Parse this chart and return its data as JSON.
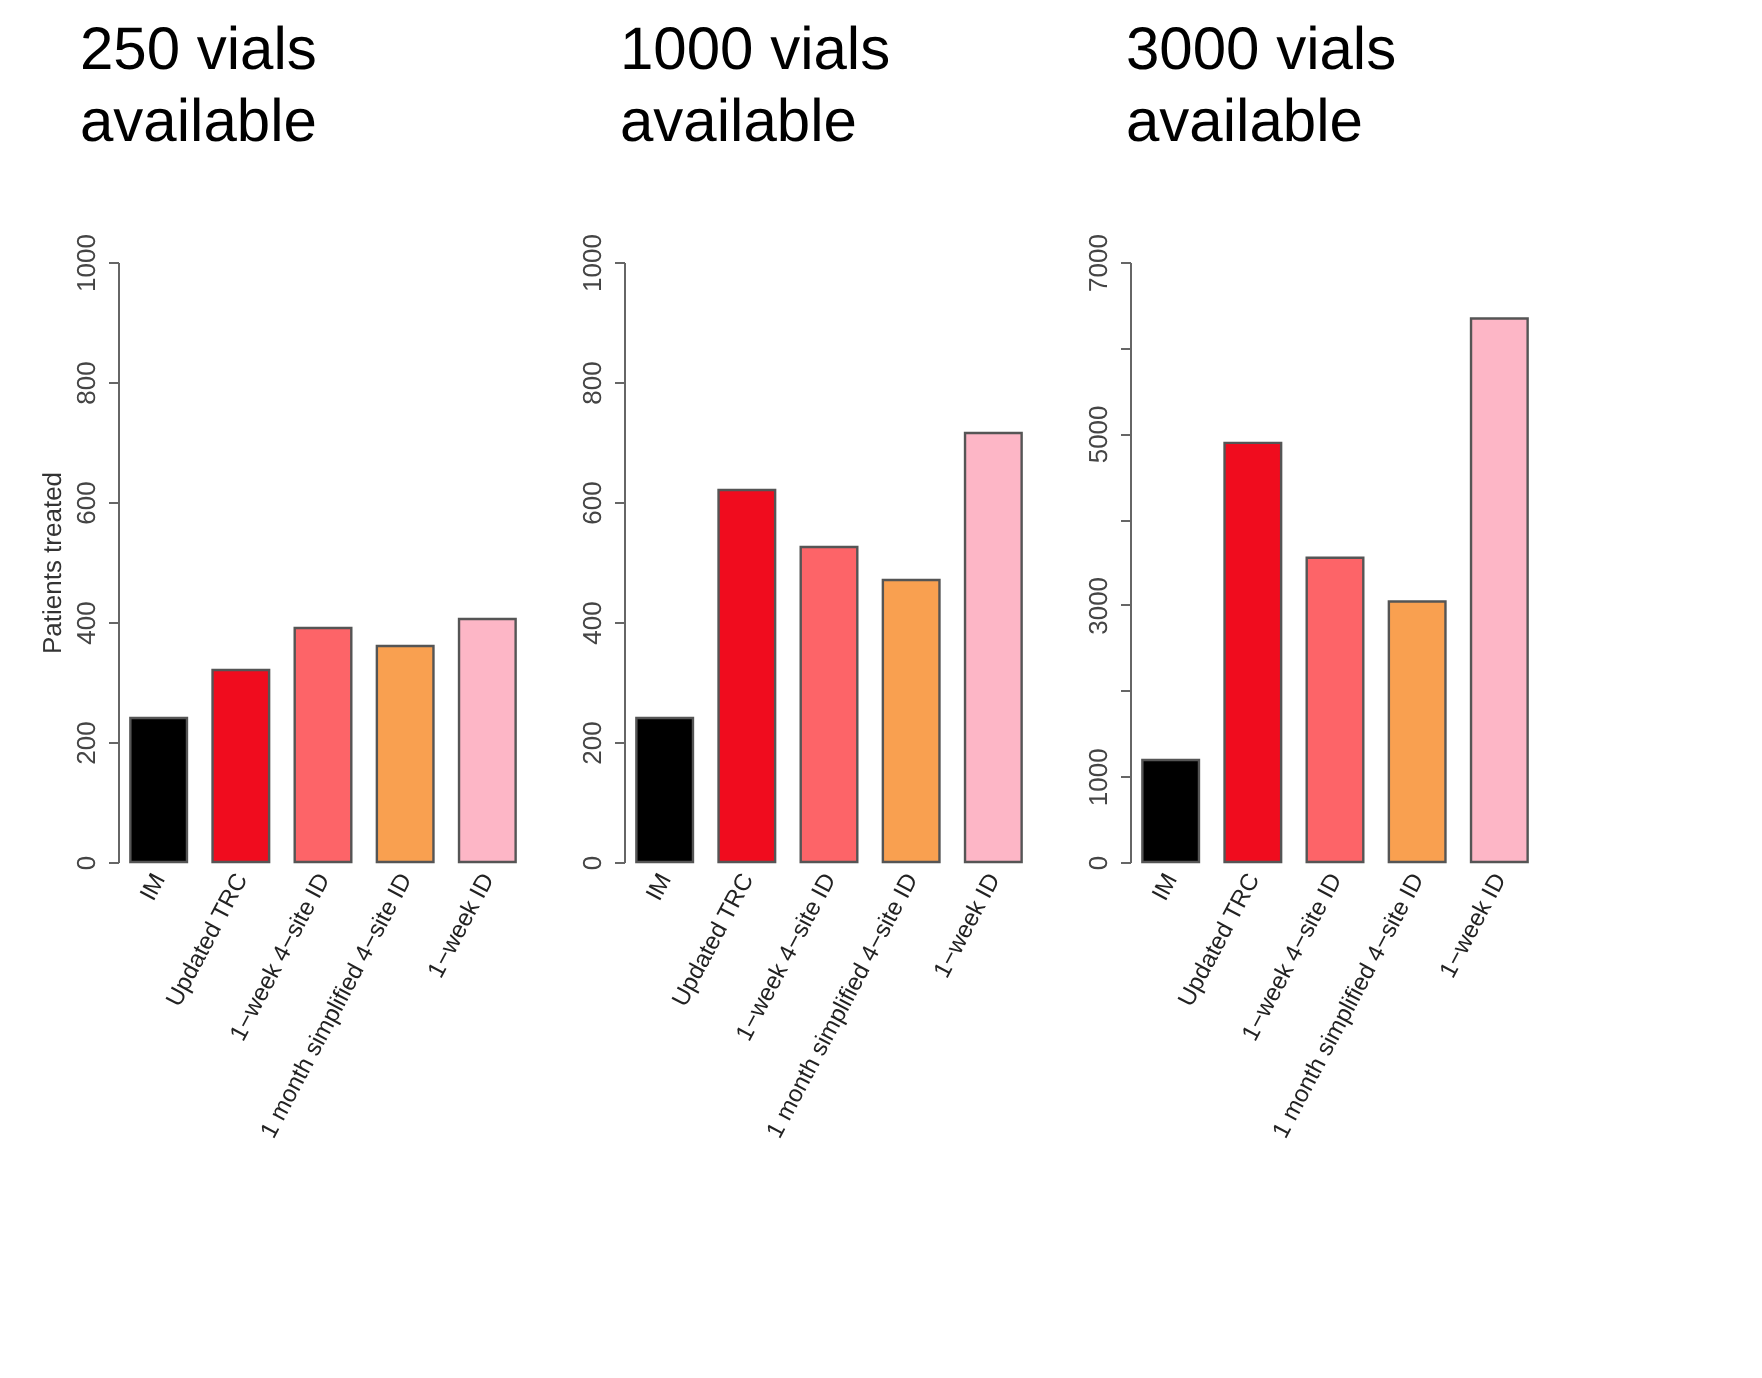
{
  "chart_data": [
    {
      "type": "bar",
      "title": "250 vials available",
      "ylabel": "Patients treated",
      "categories": [
        "IM",
        "Updated TRC",
        "1−week 4−site ID",
        "1 month simplified 4−site ID",
        "1−week ID"
      ],
      "values": [
        240,
        320,
        390,
        360,
        405
      ],
      "colors": [
        "#000000",
        "#f00c1e",
        "#fd6468",
        "#f9a050",
        "#fdb6c6"
      ],
      "ylim": [
        0,
        1000
      ],
      "yticks": [
        0,
        200,
        400,
        600,
        800,
        1000
      ]
    },
    {
      "type": "bar",
      "title": "1000 vials available",
      "categories": [
        "IM",
        "Updated TRC",
        "1−week 4−site ID",
        "1 month simplified 4−site ID",
        "1−week ID"
      ],
      "values": [
        240,
        620,
        525,
        470,
        715
      ],
      "colors": [
        "#000000",
        "#f00c1e",
        "#fd6468",
        "#f9a050",
        "#fdb6c6"
      ],
      "ylim": [
        0,
        1000
      ],
      "yticks": [
        0,
        200,
        400,
        600,
        800,
        1000
      ]
    },
    {
      "type": "bar",
      "title": "3000 vials available",
      "categories": [
        "IM",
        "Updated TRC",
        "1−week 4−site ID",
        "1 month simplified 4−site ID",
        "1−week ID"
      ],
      "values": [
        1190,
        4890,
        3550,
        3040,
        6340
      ],
      "colors": [
        "#000000",
        "#f00c1e",
        "#fd6468",
        "#f9a050",
        "#fdb6c6"
      ],
      "ylim": [
        0,
        7000
      ],
      "yticks": [
        0,
        1000,
        {
          "value": 2000,
          "label": null
        },
        3000,
        {
          "value": 4000,
          "label": null
        },
        5000,
        {
          "value": 6000,
          "label": null
        },
        7000
      ]
    }
  ]
}
